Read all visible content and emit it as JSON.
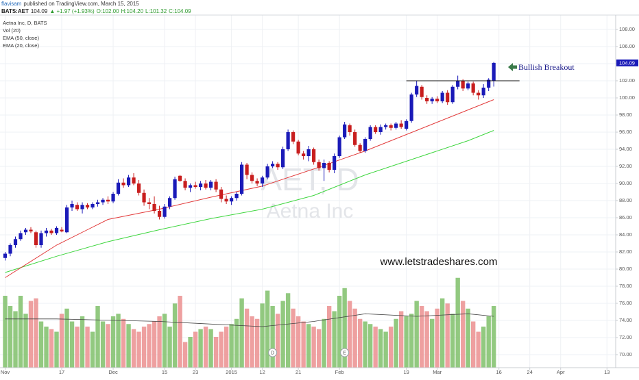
{
  "header": {
    "author": "flavisam",
    "published": "published on TradingView.com, March 15, 2015",
    "symbol": "BATS:AET",
    "change": "▲ +1.97 (+1.93%)",
    "open": "O:102.00",
    "high": "H:104.20",
    "low": "L:101.32",
    "close": "C:104.09"
  },
  "chart_data": {
    "type": "candlestick",
    "legend_title": "Aetna Inc, D, BATS",
    "volume_name": "Vol (20)",
    "watermark": "AET, D",
    "watermark_sub": "Aetna Inc",
    "annotation": "Bullish Breakout",
    "website": "www.letstradeshares.com",
    "up_color": "#1a1ab8",
    "down_color": "#c81e1e",
    "ohlc": [
      [
        81.3,
        82.0,
        81.0,
        81.8
      ],
      [
        81.8,
        83.0,
        81.5,
        82.8
      ],
      [
        82.8,
        83.8,
        82.5,
        83.5
      ],
      [
        83.5,
        84.5,
        83.3,
        84.2
      ],
      [
        84.3,
        84.8,
        84.0,
        84.6
      ],
      [
        84.6,
        84.9,
        84.2,
        84.4
      ],
      [
        84.3,
        84.5,
        82.5,
        82.8
      ],
      [
        82.8,
        84.5,
        82.5,
        84.2
      ],
      [
        84.2,
        84.8,
        83.8,
        84.5
      ],
      [
        84.5,
        84.7,
        84.0,
        84.2
      ],
      [
        84.2,
        85.0,
        84.0,
        84.8
      ],
      [
        84.6,
        84.9,
        84.3,
        84.4
      ],
      [
        84.3,
        87.5,
        84.2,
        87.2
      ],
      [
        87.2,
        88.0,
        86.8,
        87.6
      ],
      [
        87.5,
        87.8,
        86.8,
        87.0
      ],
      [
        87.0,
        87.8,
        86.5,
        87.5
      ],
      [
        87.5,
        87.7,
        87.0,
        87.2
      ],
      [
        87.2,
        87.8,
        87.0,
        87.6
      ],
      [
        87.6,
        88.1,
        87.3,
        87.8
      ],
      [
        87.8,
        88.3,
        87.5,
        88.1
      ],
      [
        88.1,
        88.5,
        87.6,
        87.9
      ],
      [
        87.9,
        89.0,
        87.7,
        88.8
      ],
      [
        88.8,
        90.5,
        88.6,
        90.1
      ],
      [
        90.1,
        90.6,
        89.5,
        89.8
      ],
      [
        89.8,
        91.0,
        89.6,
        90.7
      ],
      [
        90.7,
        91.2,
        89.8,
        90.0
      ],
      [
        90.0,
        90.4,
        88.6,
        88.9
      ],
      [
        88.9,
        89.3,
        87.4,
        87.8
      ],
      [
        87.8,
        88.3,
        87.0,
        87.6
      ],
      [
        87.6,
        88.5,
        86.5,
        86.8
      ],
      [
        86.8,
        87.4,
        85.8,
        86.1
      ],
      [
        86.1,
        87.6,
        85.9,
        87.3
      ],
      [
        87.3,
        88.5,
        87.0,
        88.3
      ],
      [
        88.3,
        90.8,
        88.1,
        90.5
      ],
      [
        90.9,
        91.0,
        90.2,
        90.3
      ],
      [
        90.3,
        90.6,
        89.2,
        89.5
      ],
      [
        89.5,
        90.0,
        89.0,
        89.8
      ],
      [
        89.8,
        90.2,
        89.4,
        89.6
      ],
      [
        89.6,
        90.3,
        89.2,
        90.0
      ],
      [
        90.0,
        90.4,
        89.3,
        89.5
      ],
      [
        89.5,
        90.4,
        89.2,
        90.2
      ],
      [
        90.2,
        90.5,
        89.0,
        89.3
      ],
      [
        89.3,
        89.6,
        87.8,
        88.2
      ],
      [
        88.2,
        88.6,
        87.6,
        87.9
      ],
      [
        87.9,
        88.5,
        87.5,
        88.3
      ],
      [
        88.3,
        89.0,
        88.0,
        88.8
      ],
      [
        88.8,
        92.5,
        88.6,
        92.2
      ],
      [
        92.2,
        92.4,
        90.5,
        91.0
      ],
      [
        91.0,
        91.3,
        90.0,
        90.3
      ],
      [
        90.3,
        90.6,
        89.7,
        90.0
      ],
      [
        90.0,
        90.9,
        89.6,
        90.7
      ],
      [
        90.7,
        92.3,
        90.5,
        92.0
      ],
      [
        92.0,
        92.6,
        91.8,
        92.3
      ],
      [
        92.3,
        92.5,
        91.6,
        91.9
      ],
      [
        91.9,
        94.3,
        91.7,
        94.0
      ],
      [
        94.0,
        96.3,
        93.8,
        96.0
      ],
      [
        96.0,
        96.2,
        94.6,
        94.9
      ],
      [
        94.9,
        95.1,
        93.3,
        93.5
      ],
      [
        93.5,
        93.8,
        92.8,
        93.2
      ],
      [
        93.2,
        94.4,
        92.6,
        94.0
      ],
      [
        94.0,
        94.2,
        92.2,
        92.5
      ],
      [
        92.5,
        92.8,
        91.5,
        91.8
      ],
      [
        91.8,
        92.8,
        90.3,
        92.4
      ],
      [
        92.4,
        92.6,
        91.3,
        91.6
      ],
      [
        91.6,
        93.5,
        91.2,
        93.2
      ],
      [
        93.2,
        95.6,
        93.0,
        95.4
      ],
      [
        95.4,
        97.2,
        95.2,
        96.9
      ],
      [
        96.8,
        97.0,
        95.6,
        96.0
      ],
      [
        96.0,
        96.3,
        94.3,
        94.5
      ],
      [
        94.5,
        94.7,
        93.6,
        93.8
      ],
      [
        93.8,
        95.4,
        93.6,
        95.2
      ],
      [
        95.2,
        96.8,
        95.0,
        96.6
      ],
      [
        96.6,
        96.8,
        95.8,
        96.0
      ],
      [
        96.0,
        96.9,
        95.7,
        96.6
      ],
      [
        96.6,
        97.0,
        96.3,
        96.8
      ],
      [
        96.8,
        97.0,
        96.2,
        96.5
      ],
      [
        96.5,
        97.2,
        96.3,
        97.0
      ],
      [
        97.0,
        97.4,
        96.4,
        96.6
      ],
      [
        96.4,
        97.5,
        96.2,
        97.3
      ],
      [
        97.3,
        100.6,
        97.1,
        100.4
      ],
      [
        100.4,
        102.0,
        100.1,
        101.4
      ],
      [
        101.3,
        101.5,
        99.8,
        100.1
      ],
      [
        100.0,
        100.3,
        99.3,
        99.6
      ],
      [
        99.6,
        100.1,
        99.3,
        99.9
      ],
      [
        99.9,
        100.2,
        99.4,
        99.6
      ],
      [
        99.6,
        100.8,
        99.4,
        100.6
      ],
      [
        100.6,
        100.9,
        99.2,
        99.5
      ],
      [
        99.5,
        101.5,
        99.3,
        101.3
      ],
      [
        101.3,
        102.6,
        101.0,
        102.0
      ],
      [
        102.0,
        102.2,
        100.8,
        101.1
      ],
      [
        101.1,
        101.9,
        100.9,
        101.7
      ],
      [
        101.7,
        101.9,
        100.3,
        100.6
      ],
      [
        100.6,
        100.9,
        99.8,
        100.3
      ],
      [
        100.3,
        101.6,
        100.0,
        101.2
      ],
      [
        101.2,
        102.3,
        100.8,
        102.12
      ],
      [
        102.0,
        104.2,
        101.32,
        104.09
      ]
    ],
    "volume": [
      2.8,
      2.4,
      2.2,
      2.8,
      2.1,
      2.6,
      2.7,
      1.8,
      1.6,
      1.5,
      1.4,
      2.1,
      2.3,
      1.8,
      1.6,
      2.0,
      1.6,
      1.4,
      2.4,
      1.8,
      1.7,
      2.0,
      2.1,
      1.9,
      1.7,
      1.5,
      1.4,
      1.6,
      1.7,
      1.8,
      2.0,
      2.1,
      1.6,
      2.5,
      2.8,
      1.0,
      1.2,
      1.4,
      1.5,
      1.6,
      1.5,
      1.2,
      1.4,
      1.6,
      1.7,
      1.9,
      2.7,
      2.3,
      2.0,
      1.9,
      2.5,
      3.0,
      2.4,
      2.1,
      2.6,
      2.9,
      2.3,
      2.0,
      1.8,
      1.7,
      1.6,
      1.5,
      1.9,
      2.4,
      2.2,
      2.8,
      3.1,
      2.6,
      2.3,
      1.9,
      1.8,
      1.7,
      1.6,
      1.5,
      1.4,
      1.6,
      1.9,
      2.2,
      2.0,
      2.1,
      2.6,
      2.4,
      2.2,
      1.9,
      2.3,
      2.7,
      2.5,
      2.1,
      3.5,
      2.6,
      2.3,
      1.8,
      1.4,
      1.6,
      2.0,
      2.4
    ],
    "volume_ylim": [
      0,
      4
    ],
    "volume_up_color": "#7fbf6a",
    "volume_down_color": "#eb8f8f",
    "volume_ma": {
      "color": "#444444",
      "x": [
        0,
        10,
        20,
        30,
        40,
        50,
        60,
        70,
        80,
        90,
        95
      ],
      "values": [
        1.9,
        1.9,
        1.85,
        1.8,
        1.7,
        1.6,
        1.8,
        2.1,
        2.0,
        2.1,
        2.0
      ]
    },
    "ema": [
      {
        "name": "EMA (50, close)",
        "color": "#3ed63e",
        "x": [
          0,
          10,
          20,
          30,
          40,
          50,
          60,
          70,
          80,
          90,
          95
        ],
        "values": [
          79.6,
          81.5,
          83.2,
          84.6,
          85.9,
          87.0,
          88.6,
          91.0,
          93.0,
          95.0,
          96.2
        ]
      },
      {
        "name": "EMA (20, close)",
        "color": "#e23b3b",
        "x": [
          0,
          10,
          20,
          30,
          40,
          50,
          60,
          70,
          80,
          90,
          95
        ],
        "values": [
          79.0,
          82.8,
          85.8,
          87.0,
          88.4,
          89.7,
          91.7,
          93.8,
          96.2,
          98.6,
          99.8
        ]
      }
    ],
    "resistance": {
      "value": 102,
      "from": 78,
      "to": 100
    },
    "events": [
      {
        "label": "D",
        "x": 52
      },
      {
        "label": "E",
        "x": 66
      }
    ],
    "xlim": [
      -1,
      118.7
    ],
    "xticks": [
      {
        "value": 0,
        "label": "Nov"
      },
      {
        "value": 11,
        "label": "17"
      },
      {
        "value": 21,
        "label": "Dec"
      },
      {
        "value": 31,
        "label": "15"
      },
      {
        "value": 37,
        "label": "23"
      },
      {
        "value": 44,
        "label": "2015"
      },
      {
        "value": 50,
        "label": "12"
      },
      {
        "value": 57,
        "label": "21"
      },
      {
        "value": 65,
        "label": "Feb"
      },
      {
        "value": 78,
        "label": "19"
      },
      {
        "value": 84,
        "label": "Mar"
      },
      {
        "value": 96,
        "label": "16"
      },
      {
        "value": 102,
        "label": "24"
      },
      {
        "value": 108,
        "label": "Apr"
      },
      {
        "value": 117,
        "label": "13"
      }
    ],
    "ylim": [
      68.48,
      109.68
    ],
    "yticks": [
      {
        "value": 70,
        "label": "70.00"
      },
      {
        "value": 72,
        "label": "72.00"
      },
      {
        "value": 74,
        "label": "74.00"
      },
      {
        "value": 76,
        "label": "76.00"
      },
      {
        "value": 78,
        "label": "78.00"
      },
      {
        "value": 80,
        "label": "80.00"
      },
      {
        "value": 82,
        "label": "82.00"
      },
      {
        "value": 84,
        "label": "84.00"
      },
      {
        "value": 86,
        "label": "86.00"
      },
      {
        "value": 88,
        "label": "88.00"
      },
      {
        "value": 90,
        "label": "90.00"
      },
      {
        "value": 92,
        "label": "92.00"
      },
      {
        "value": 94,
        "label": "94.00"
      },
      {
        "value": 96,
        "label": "96.00"
      },
      {
        "value": 98,
        "label": "98.00"
      },
      {
        "value": 100,
        "label": "100.00"
      },
      {
        "value": 102,
        "label": "102.00"
      },
      {
        "value": 104,
        "label": "104.00"
      },
      {
        "value": 106,
        "label": "106.00"
      },
      {
        "value": 108,
        "label": "108.00"
      }
    ],
    "grid": true
  }
}
